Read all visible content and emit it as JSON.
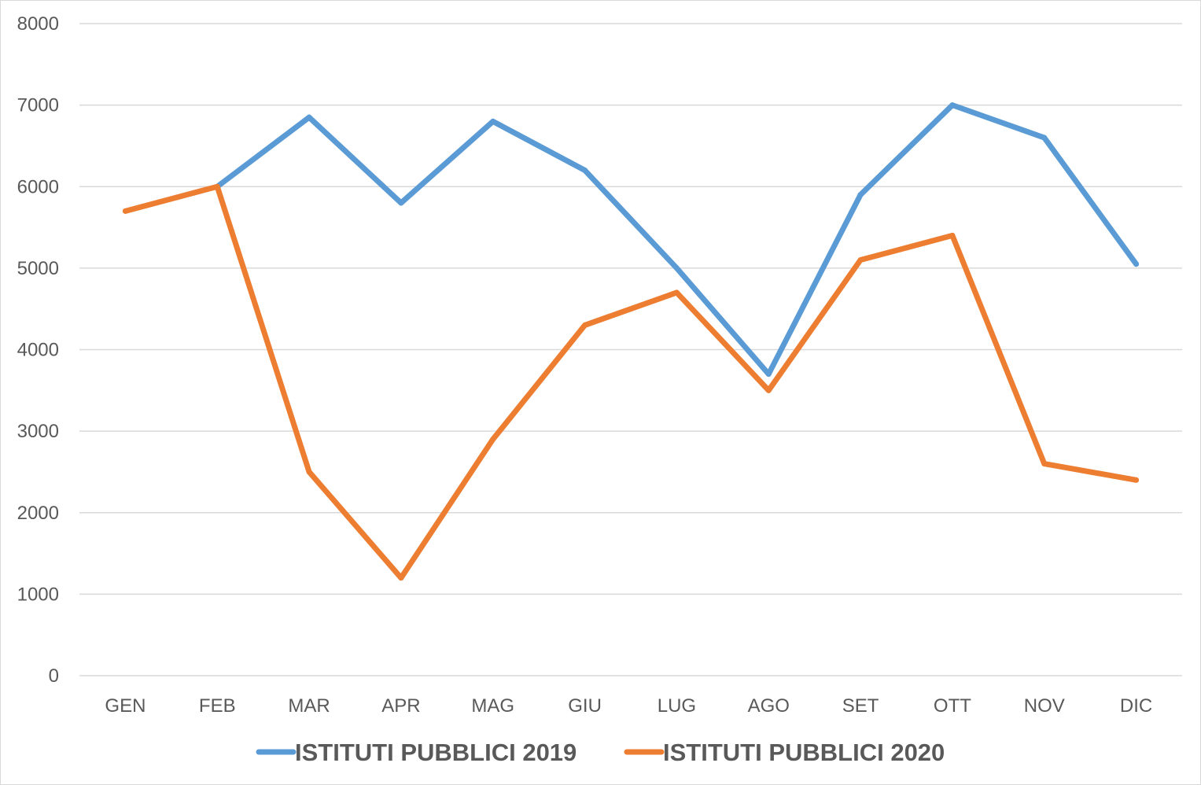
{
  "chart_data": {
    "type": "line",
    "title": "",
    "xlabel": "",
    "ylabel": "",
    "categories": [
      "GEN",
      "FEB",
      "MAR",
      "APR",
      "MAG",
      "GIU",
      "LUG",
      "AGO",
      "SET",
      "OTT",
      "NOV",
      "DIC"
    ],
    "ylim": [
      0,
      8000
    ],
    "y_ticks": [
      0,
      1000,
      2000,
      3000,
      4000,
      5000,
      6000,
      7000,
      8000
    ],
    "grid": true,
    "legend_position": "bottom",
    "series": [
      {
        "name": "ISTITUTI PUBBLICI 2019",
        "color": "#5b9bd5",
        "values": [
          null,
          6000,
          6850,
          5800,
          6800,
          6200,
          5000,
          3700,
          5900,
          7000,
          6600,
          5050
        ]
      },
      {
        "name": "ISTITUTI PUBBLICI 2020",
        "color": "#ed7d31",
        "values": [
          5700,
          6000,
          2500,
          1200,
          2900,
          4300,
          4700,
          3500,
          5100,
          5400,
          2600,
          2400
        ]
      }
    ]
  }
}
